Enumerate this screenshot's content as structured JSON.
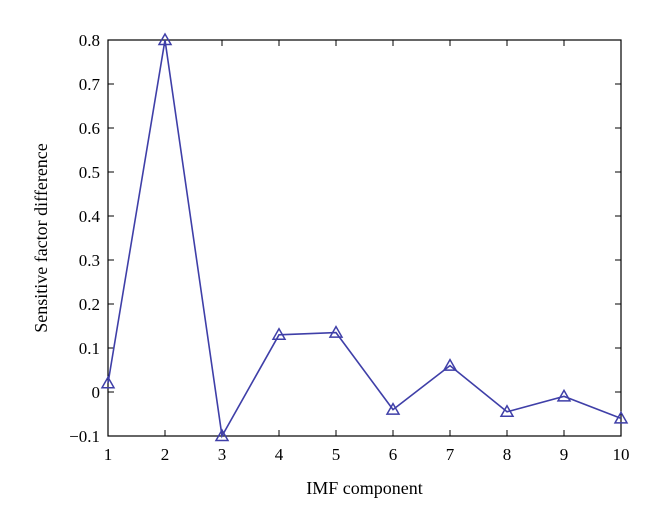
{
  "chart_data": {
    "type": "line",
    "title": "",
    "xlabel": "IMF component",
    "ylabel": "Sensitive factor difference",
    "x": [
      1,
      2,
      3,
      4,
      5,
      6,
      7,
      8,
      9,
      10
    ],
    "series": [
      {
        "values": [
          0.02,
          0.8,
          -0.1,
          0.13,
          0.135,
          -0.04,
          0.06,
          -0.045,
          -0.01,
          -0.06
        ],
        "color": "#3f3fa8",
        "marker": "triangle-open"
      }
    ],
    "xlim": [
      1,
      10
    ],
    "ylim": [
      -0.1,
      0.8
    ],
    "xticks": [
      "1",
      "2",
      "3",
      "4",
      "5",
      "6",
      "7",
      "8",
      "9",
      "10"
    ],
    "yticks": [
      "−0.1",
      "0",
      "0.1",
      "0.2",
      "0.3",
      "0.4",
      "0.5",
      "0.6",
      "0.7",
      "0.8"
    ],
    "grid": false,
    "legend": "none"
  }
}
